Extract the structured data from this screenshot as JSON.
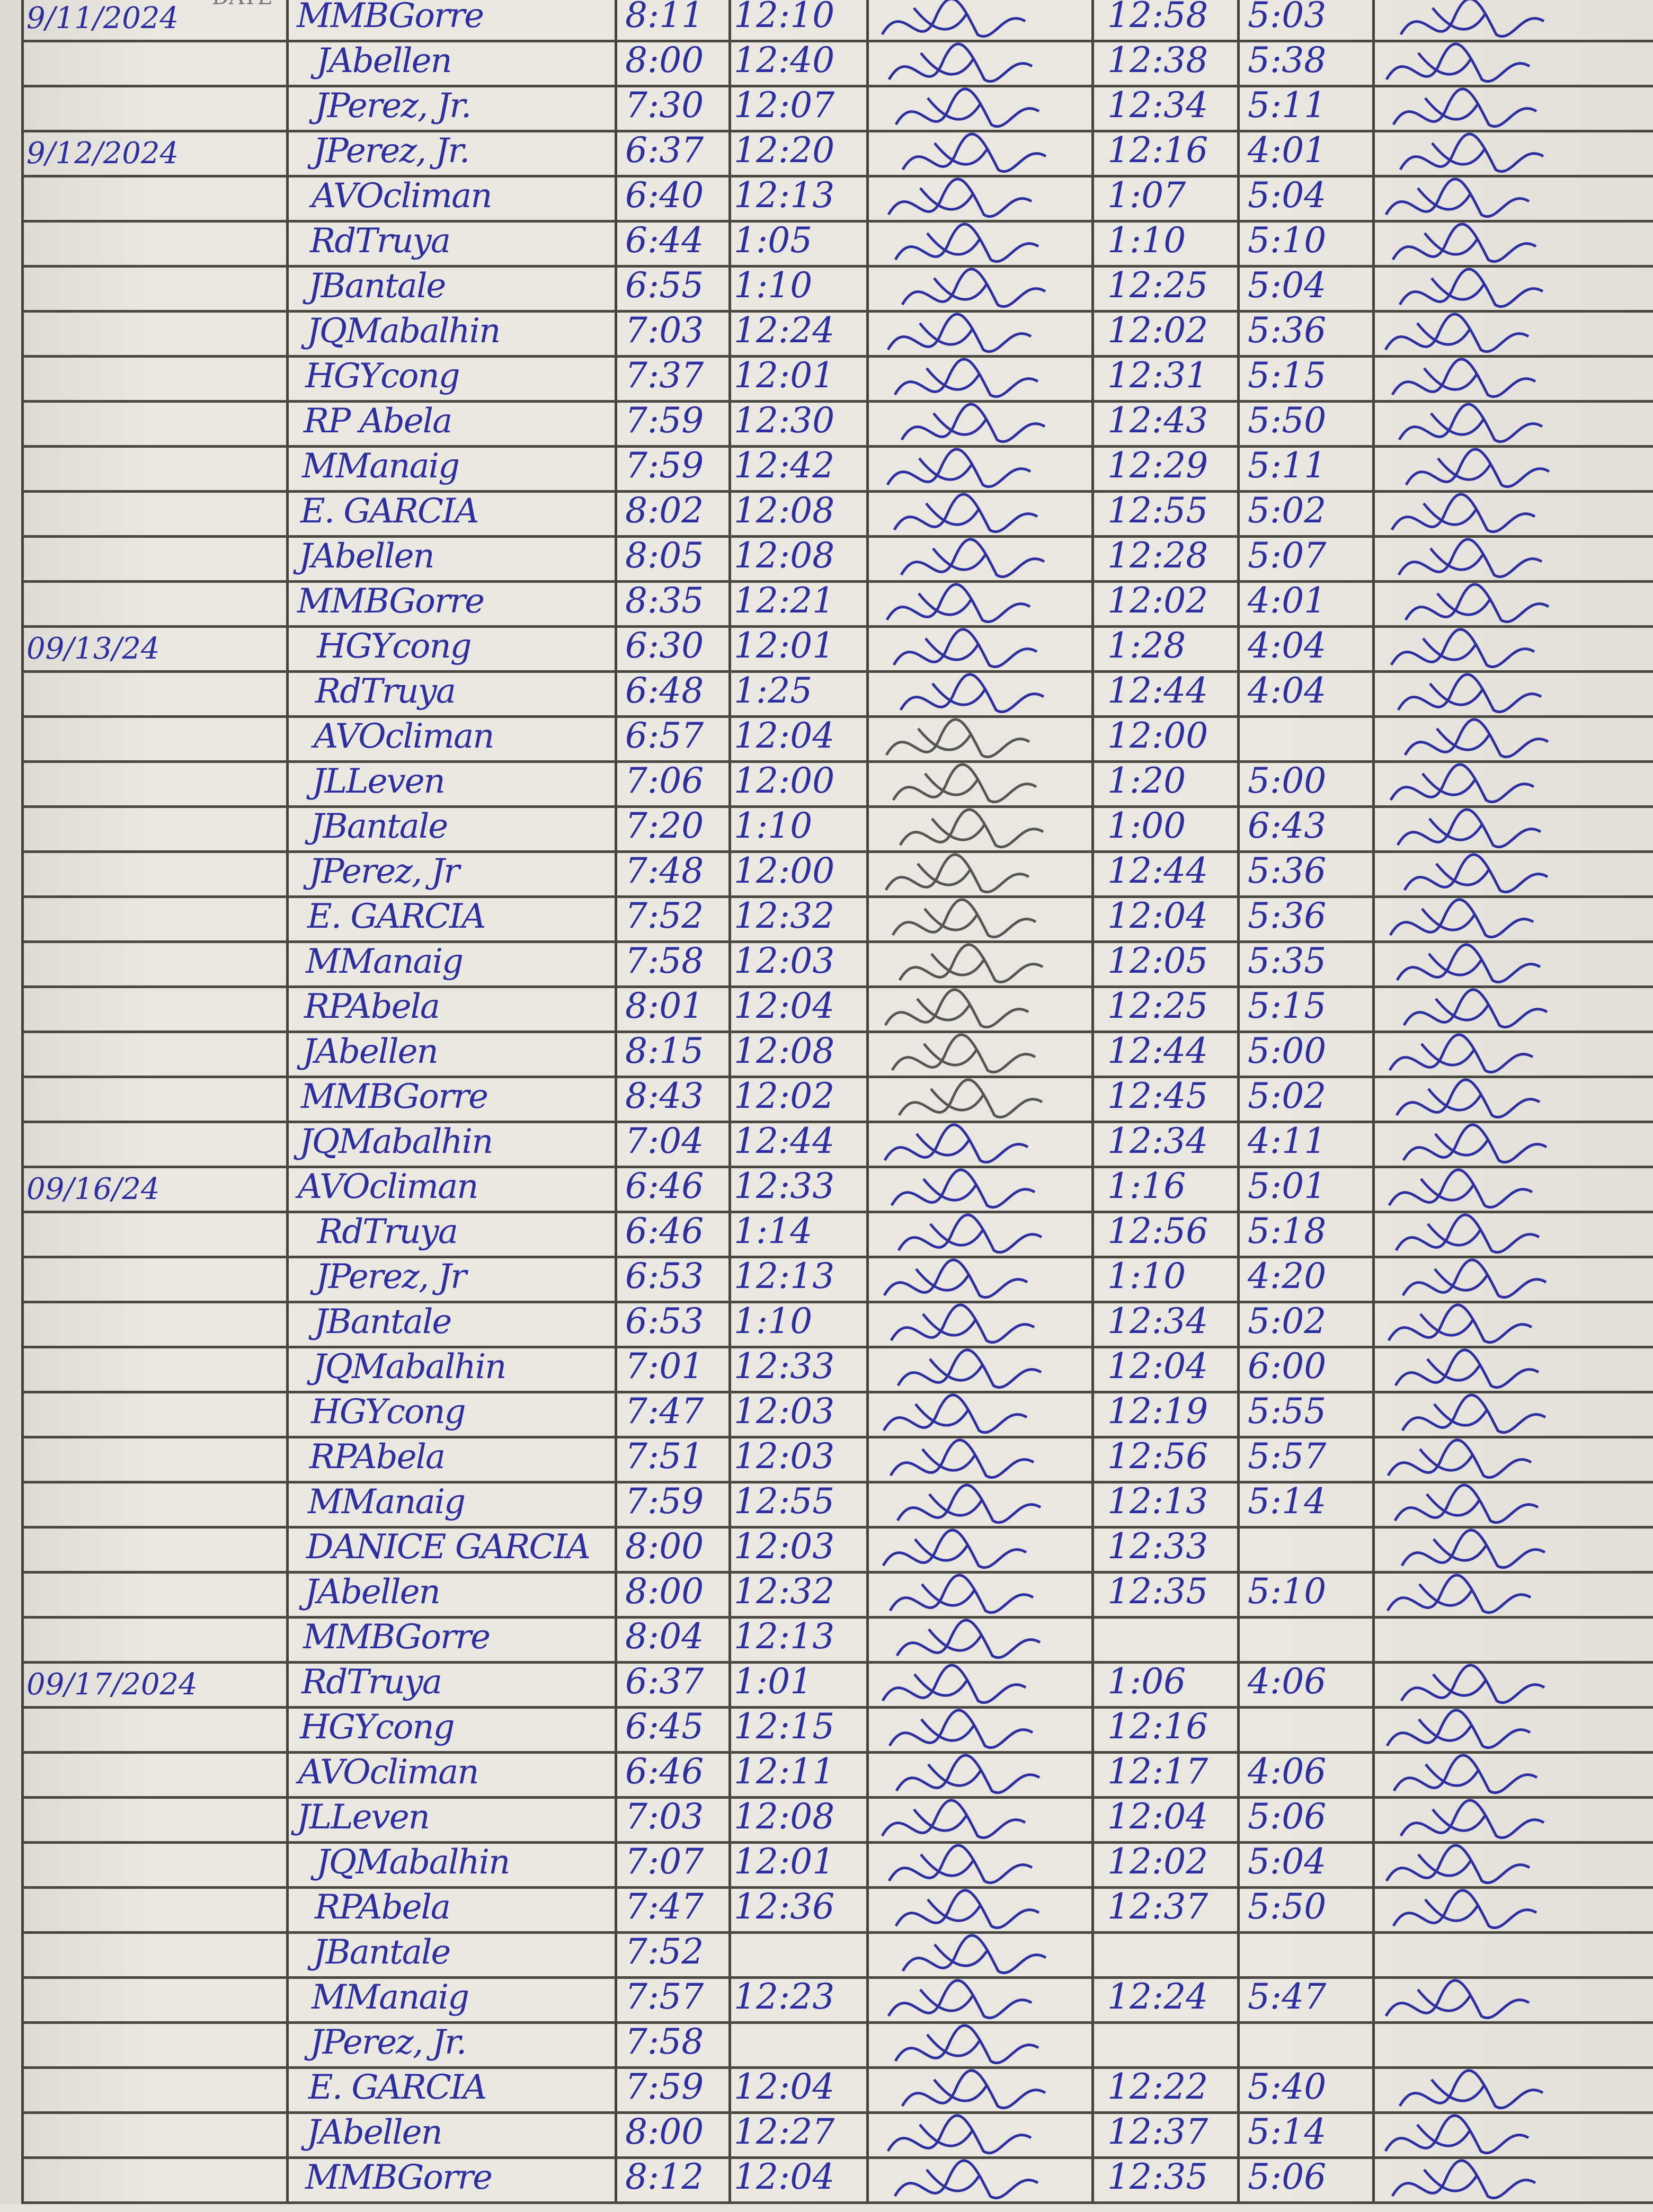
{
  "header": {
    "date_label": "DATE"
  },
  "ink_color": "#2b2fa0",
  "entries": [
    {
      "date": "9/11/2024",
      "name": "MMBGorre",
      "am_in": "8:11",
      "am_out": "12:10",
      "pm_in": "12:58",
      "pm_out": "5:03"
    },
    {
      "date": "",
      "name": "JAbellen",
      "am_in": "8:00",
      "am_out": "12:40",
      "pm_in": "12:38",
      "pm_out": "5:38"
    },
    {
      "date": "",
      "name": "JPerez, Jr.",
      "am_in": "7:30",
      "am_out": "12:07",
      "pm_in": "12:34",
      "pm_out": "5:11"
    },
    {
      "date": "9/12/2024",
      "name": "JPerez, Jr.",
      "am_in": "6:37",
      "am_out": "12:20",
      "pm_in": "12:16",
      "pm_out": "4:01"
    },
    {
      "date": "",
      "name": "AVOcliman",
      "am_in": "6:40",
      "am_out": "12:13",
      "pm_in": "1:07",
      "pm_out": "5:04"
    },
    {
      "date": "",
      "name": "RdTruya",
      "am_in": "6:44",
      "am_out": "1:05",
      "pm_in": "1:10",
      "pm_out": "5:10"
    },
    {
      "date": "",
      "name": "JBantale",
      "am_in": "6:55",
      "am_out": "1:10",
      "pm_in": "12:25",
      "pm_out": "5:04"
    },
    {
      "date": "",
      "name": "JQMabalhin",
      "am_in": "7:03",
      "am_out": "12:24",
      "pm_in": "12:02",
      "pm_out": "5:36"
    },
    {
      "date": "",
      "name": "HGYcong",
      "am_in": "7:37",
      "am_out": "12:01",
      "pm_in": "12:31",
      "pm_out": "5:15"
    },
    {
      "date": "",
      "name": "RP Abela",
      "am_in": "7:59",
      "am_out": "12:30",
      "pm_in": "12:43",
      "pm_out": "5:50"
    },
    {
      "date": "",
      "name": "MManaig",
      "am_in": "7:59",
      "am_out": "12:42",
      "pm_in": "12:29",
      "pm_out": "5:11"
    },
    {
      "date": "",
      "name": "E. GARCIA",
      "am_in": "8:02",
      "am_out": "12:08",
      "pm_in": "12:55",
      "pm_out": "5:02"
    },
    {
      "date": "",
      "name": "JAbellen",
      "am_in": "8:05",
      "am_out": "12:08",
      "pm_in": "12:28",
      "pm_out": "5:07"
    },
    {
      "date": "",
      "name": "MMBGorre",
      "am_in": "8:35",
      "am_out": "12:21",
      "pm_in": "12:02",
      "pm_out": "4:01"
    },
    {
      "date": "09/13/24",
      "name": "HGYcong",
      "am_in": "6:30",
      "am_out": "12:01",
      "pm_in": "1:28",
      "pm_out": "4:04"
    },
    {
      "date": "",
      "name": "RdTruya",
      "am_in": "6:48",
      "am_out": "1:25",
      "pm_in": "12:44",
      "pm_out": "4:04"
    },
    {
      "date": "",
      "name": "AVOcliman",
      "am_in": "6:57",
      "am_out": "12:04",
      "pm_in": "12:00",
      "pm_out": ""
    },
    {
      "date": "",
      "name": "JLLeven",
      "am_in": "7:06",
      "am_out": "12:00",
      "pm_in": "1:20",
      "pm_out": "5:00"
    },
    {
      "date": "",
      "name": "JBantale",
      "am_in": "7:20",
      "am_out": "1:10",
      "pm_in": "1:00",
      "pm_out": "6:43"
    },
    {
      "date": "",
      "name": "JPerez, Jr",
      "am_in": "7:48",
      "am_out": "12:00",
      "pm_in": "12:44",
      "pm_out": "5:36"
    },
    {
      "date": "",
      "name": "E. GARCIA",
      "am_in": "7:52",
      "am_out": "12:32",
      "pm_in": "12:04",
      "pm_out": "5:36"
    },
    {
      "date": "",
      "name": "MManaig",
      "am_in": "7:58",
      "am_out": "12:03",
      "pm_in": "12:05",
      "pm_out": "5:35"
    },
    {
      "date": "",
      "name": "RPAbela",
      "am_in": "8:01",
      "am_out": "12:04",
      "pm_in": "12:25",
      "pm_out": "5:15"
    },
    {
      "date": "",
      "name": "JAbellen",
      "am_in": "8:15",
      "am_out": "12:08",
      "pm_in": "12:44",
      "pm_out": "5:00"
    },
    {
      "date": "",
      "name": "MMBGorre",
      "am_in": "8:43",
      "am_out": "12:02",
      "pm_in": "12:45",
      "pm_out": "5:02"
    },
    {
      "date": "",
      "name": "JQMabalhin",
      "am_in": "7:04",
      "am_out": "12:44",
      "pm_in": "12:34",
      "pm_out": "4:11"
    },
    {
      "date": "09/16/24",
      "name": "AVOcliman",
      "am_in": "6:46",
      "am_out": "12:33",
      "pm_in": "1:16",
      "pm_out": "5:01"
    },
    {
      "date": "",
      "name": "RdTruya",
      "am_in": "6:46",
      "am_out": "1:14",
      "pm_in": "12:56",
      "pm_out": "5:18"
    },
    {
      "date": "",
      "name": "JPerez, Jr",
      "am_in": "6:53",
      "am_out": "12:13",
      "pm_in": "1:10",
      "pm_out": "4:20"
    },
    {
      "date": "",
      "name": "JBantale",
      "am_in": "6:53",
      "am_out": "1:10",
      "pm_in": "12:34",
      "pm_out": "5:02"
    },
    {
      "date": "",
      "name": "JQMabalhin",
      "am_in": "7:01",
      "am_out": "12:33",
      "pm_in": "12:04",
      "pm_out": "6:00"
    },
    {
      "date": "",
      "name": "HGYcong",
      "am_in": "7:47",
      "am_out": "12:03",
      "pm_in": "12:19",
      "pm_out": "5:55"
    },
    {
      "date": "",
      "name": "RPAbela",
      "am_in": "7:51",
      "am_out": "12:03",
      "pm_in": "12:56",
      "pm_out": "5:57"
    },
    {
      "date": "",
      "name": "MManaig",
      "am_in": "7:59",
      "am_out": "12:55",
      "pm_in": "12:13",
      "pm_out": "5:14"
    },
    {
      "date": "",
      "name": "DANICE GARCIA",
      "am_in": "8:00",
      "am_out": "12:03",
      "pm_in": "12:33",
      "pm_out": ""
    },
    {
      "date": "",
      "name": "JAbellen",
      "am_in": "8:00",
      "am_out": "12:32",
      "pm_in": "12:35",
      "pm_out": "5:10"
    },
    {
      "date": "",
      "name": "MMBGorre",
      "am_in": "8:04",
      "am_out": "12:13",
      "pm_in": "",
      "pm_out": ""
    },
    {
      "date": "09/17/2024",
      "name": "RdTruya",
      "am_in": "6:37",
      "am_out": "1:01",
      "pm_in": "1:06",
      "pm_out": "4:06"
    },
    {
      "date": "",
      "name": "HGYcong",
      "am_in": "6:45",
      "am_out": "12:15",
      "pm_in": "12:16",
      "pm_out": ""
    },
    {
      "date": "",
      "name": "AVOcliman",
      "am_in": "6:46",
      "am_out": "12:11",
      "pm_in": "12:17",
      "pm_out": "4:06"
    },
    {
      "date": "",
      "name": "JLLeven",
      "am_in": "7:03",
      "am_out": "12:08",
      "pm_in": "12:04",
      "pm_out": "5:06"
    },
    {
      "date": "",
      "name": "JQMabalhin",
      "am_in": "7:07",
      "am_out": "12:01",
      "pm_in": "12:02",
      "pm_out": "5:04"
    },
    {
      "date": "",
      "name": "RPAbela",
      "am_in": "7:47",
      "am_out": "12:36",
      "pm_in": "12:37",
      "pm_out": "5:50"
    },
    {
      "date": "",
      "name": "JBantale",
      "am_in": "7:52",
      "am_out": "",
      "pm_in": "",
      "pm_out": ""
    },
    {
      "date": "",
      "name": "MManaig",
      "am_in": "7:57",
      "am_out": "12:23",
      "pm_in": "12:24",
      "pm_out": "5:47"
    },
    {
      "date": "",
      "name": "JPerez, Jr.",
      "am_in": "7:58",
      "am_out": "",
      "pm_in": "",
      "pm_out": ""
    },
    {
      "date": "",
      "name": "E. GARCIA",
      "am_in": "7:59",
      "am_out": "12:04",
      "pm_in": "12:22",
      "pm_out": "5:40"
    },
    {
      "date": "",
      "name": "JAbellen",
      "am_in": "8:00",
      "am_out": "12:27",
      "pm_in": "12:37",
      "pm_out": "5:14"
    },
    {
      "date": "",
      "name": "MMBGorre",
      "am_in": "8:12",
      "am_out": "12:04",
      "pm_in": "12:35",
      "pm_out": "5:06"
    }
  ]
}
